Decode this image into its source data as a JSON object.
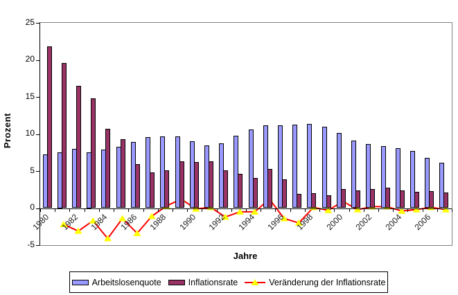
{
  "chart_data": {
    "type": "bar",
    "subtype": "grouped bars with overlaid difference line",
    "title": "",
    "xlabel": "Jahre",
    "ylabel": "Prozent",
    "ylim": [
      -5,
      25
    ],
    "yticks": [
      25,
      20,
      15,
      10,
      5,
      0,
      -5
    ],
    "grid": "plot border only, no interior gridlines",
    "legend_position": "bottom",
    "categories": [
      "1980",
      "1981",
      "1982",
      "1983",
      "1984",
      "1985",
      "1986",
      "1987",
      "1988",
      "1989",
      "1990",
      "1991",
      "1992",
      "1993",
      "1994",
      "1995",
      "1996",
      "1997",
      "1998",
      "1999",
      "2000",
      "2001",
      "2002",
      "2003",
      "2004",
      "2005",
      "2006",
      "2007"
    ],
    "xtick_labels": [
      "1980",
      "1982",
      "1984",
      "1986",
      "1988",
      "1990",
      "1992",
      "1994",
      "1996",
      "1998",
      "2000",
      "2002",
      "2004",
      "2006"
    ],
    "series": [
      {
        "name": "Arbeitslosenquote",
        "kind": "bar",
        "color": "#9999FF",
        "border_color": "#000000",
        "values": [
          7.2,
          7.5,
          8.0,
          7.5,
          7.9,
          8.3,
          8.9,
          9.6,
          9.7,
          9.7,
          9.0,
          8.5,
          8.7,
          9.8,
          10.6,
          11.2,
          11.2,
          11.3,
          11.4,
          11.0,
          10.1,
          9.1,
          8.6,
          8.4,
          8.1,
          7.7,
          6.8,
          6.1
        ]
      },
      {
        "name": "Inflationsrate",
        "kind": "bar",
        "color": "#993366",
        "border_color": "#000000",
        "values": [
          21.8,
          19.6,
          16.5,
          14.8,
          10.7,
          9.3,
          5.9,
          4.8,
          5.1,
          6.3,
          6.2,
          6.3,
          5.1,
          4.6,
          4.1,
          5.3,
          3.9,
          1.9,
          2.0,
          1.7,
          2.6,
          2.4,
          2.6,
          2.8,
          2.4,
          2.2,
          2.3,
          2.1
        ]
      },
      {
        "name": "Veränderung der Inflationsrate",
        "kind": "line",
        "color": "#FF0000",
        "marker": "triangle",
        "marker_color": "#FFFF00",
        "values": [
          null,
          -2.2,
          -3.1,
          -1.7,
          -4.1,
          -1.4,
          -3.4,
          -1.1,
          0.3,
          1.2,
          -0.1,
          0.1,
          -1.2,
          -0.5,
          -0.5,
          1.2,
          -1.4,
          -2.0,
          0.1,
          -0.3,
          0.9,
          -0.2,
          0.2,
          0.2,
          -0.4,
          -0.2,
          0.1,
          -0.2
        ]
      }
    ],
    "colors": {
      "plot_border": "#808080",
      "axis": "#000000",
      "background": "#FFFFFF"
    }
  }
}
